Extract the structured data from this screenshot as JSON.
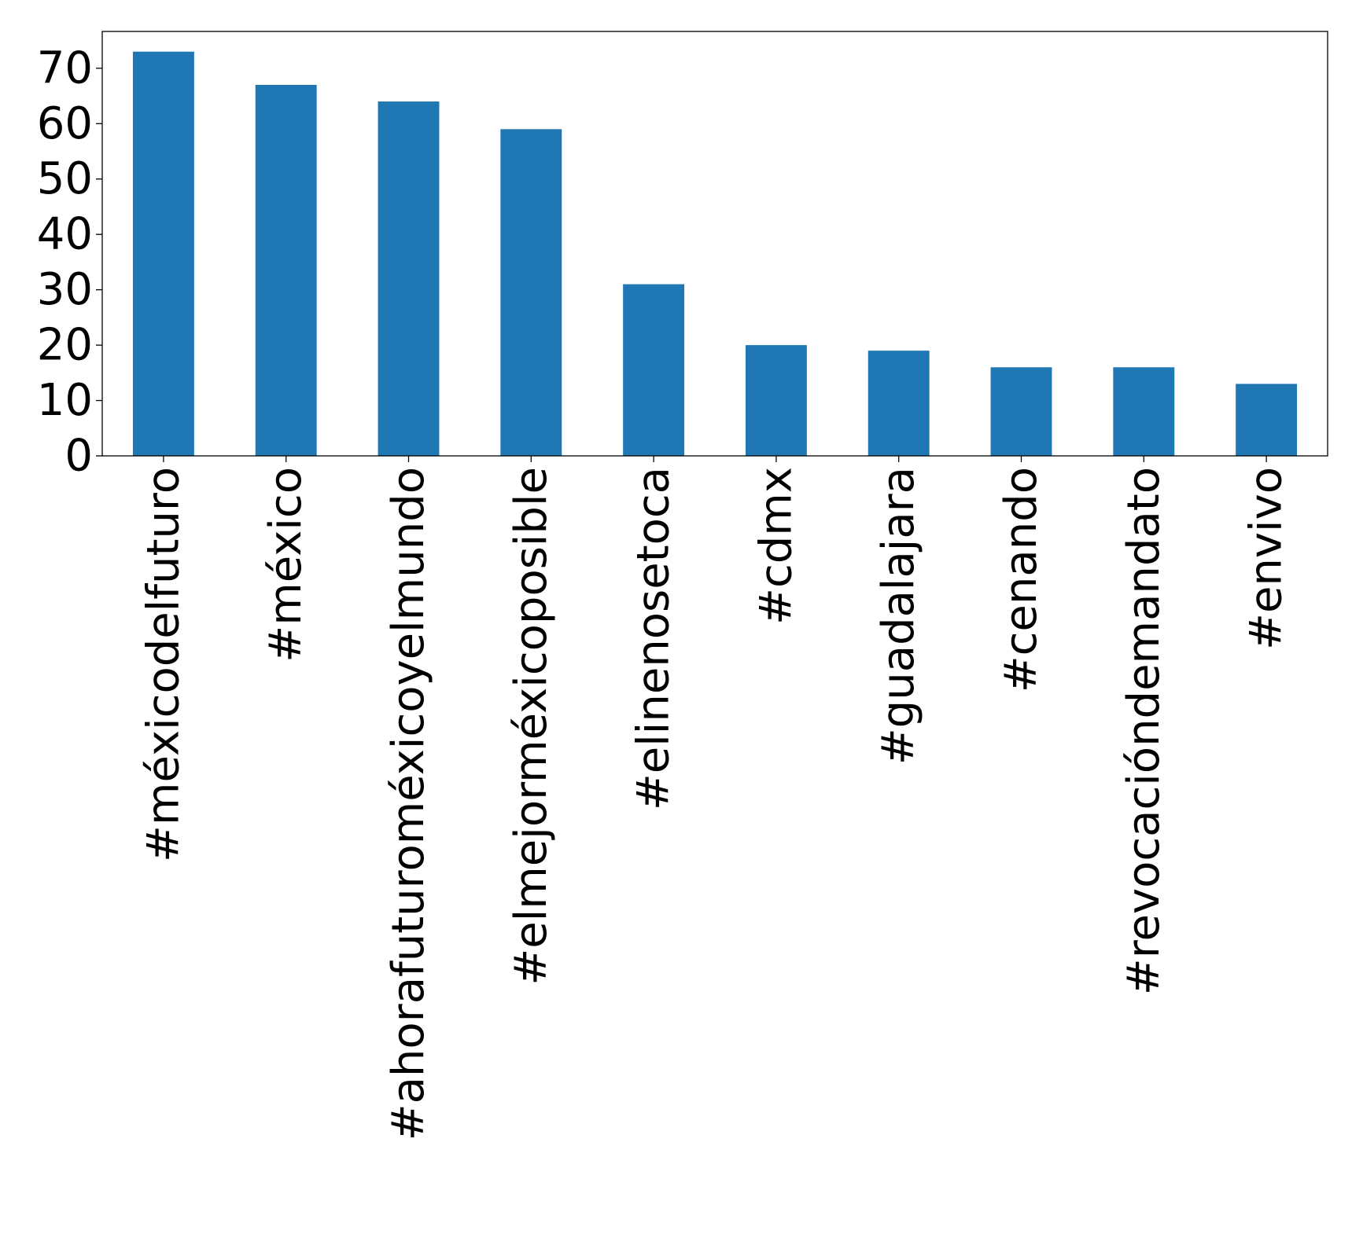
{
  "chart_data": {
    "type": "bar",
    "title": "",
    "xlabel": "",
    "ylabel": "",
    "categories": [
      "#méxicodelfuturo",
      "#méxico",
      "#ahorafuturoméxicoyelmundo",
      "#elmejorméxicoposible",
      "#elinenosetoca",
      "#cdmx",
      "#guadalajara",
      "#cenando",
      "#revocacióndemandato",
      "#envivo"
    ],
    "values": [
      73,
      67,
      64,
      59,
      31,
      20,
      19,
      16,
      16,
      13
    ],
    "ylim": [
      0,
      76.65
    ],
    "yticks": [
      0,
      10,
      20,
      30,
      40,
      50,
      60,
      70
    ],
    "grid": false,
    "legend": "none",
    "bar_color": "#1f77b4"
  }
}
